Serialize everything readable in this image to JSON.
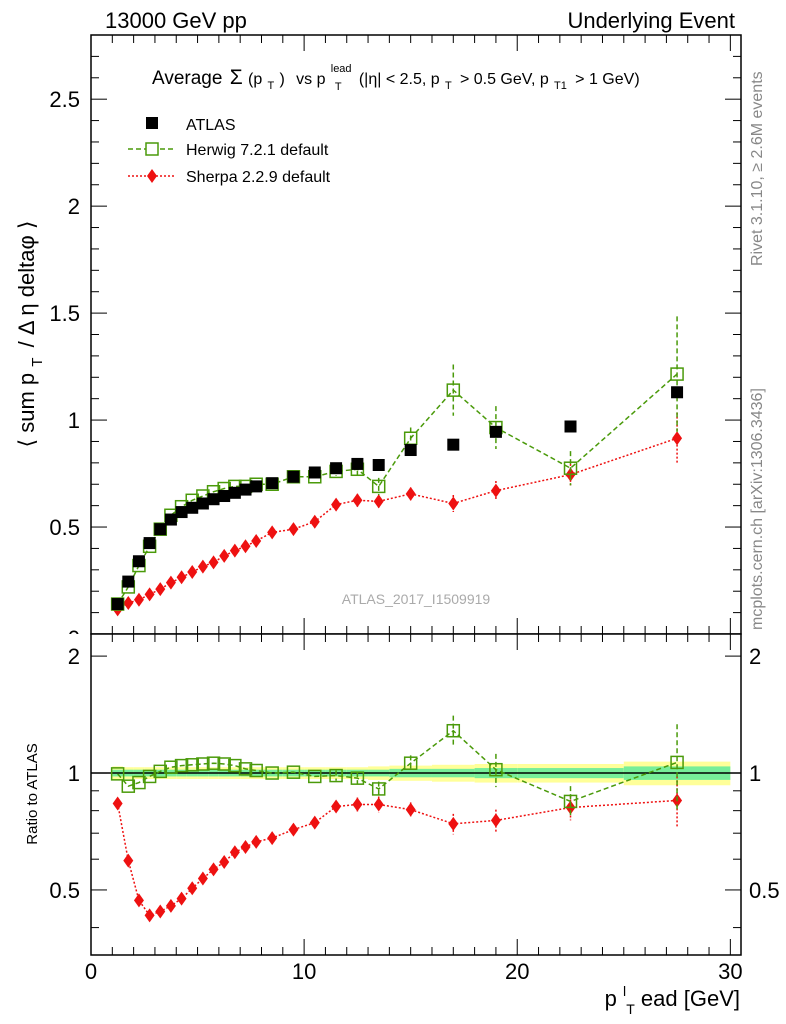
{
  "header": {
    "left": "13000 GeV pp",
    "right": "Underlying Event"
  },
  "side": {
    "rivet": "Rivet 3.1.10, ≥ 2.6M events",
    "mcplots": "mcplots.cern.ch [arXiv:1306.3436]"
  },
  "watermark": "ATLAS_2017_I1509919",
  "colors": {
    "herwig": "#4a9a0a",
    "sherpa": "#ee1111",
    "band_inner": "#77ee99",
    "band_outer": "#ffff99"
  },
  "chart_data": [
    {
      "type": "scatter",
      "panel": "main",
      "title": {
        "average": "Average",
        "sigma": "Σ",
        "pt_open": "(p",
        "pt_sub": "T",
        "pt_close": ")",
        "vs": "vs p",
        "lead_sup": "lead",
        "lead_sub": "T",
        "cuts_a": "(|η| < 2.5, p",
        "cuts_a_sub": "T",
        "cuts_b": "> 0.5 GeV, p",
        "cuts_b_sub": "T1",
        "cuts_c": "> 1 GeV)"
      },
      "ylabel": {
        "a": "⟨ sum p",
        "sub": "T",
        "b": "/ Δ η deltaφ ⟩"
      },
      "xlim": [
        0,
        30.5
      ],
      "ylim": [
        0,
        2.8
      ],
      "yticks": [
        "0.5",
        "1",
        "1.5",
        "2",
        "2.5"
      ],
      "ytick_values": [
        0.5,
        1,
        1.5,
        2,
        2.5
      ],
      "legend_position": "top-left",
      "series": [
        {
          "name": "ATLAS",
          "marker": "filled-square",
          "x": [
            1.25,
            1.75,
            2.25,
            2.75,
            3.25,
            3.75,
            4.25,
            4.75,
            5.25,
            5.75,
            6.25,
            6.75,
            7.25,
            7.75,
            8.5,
            9.5,
            10.5,
            11.5,
            12.5,
            13.5,
            15,
            17,
            19,
            22.5,
            27.5
          ],
          "y": [
            0.14,
            0.245,
            0.34,
            0.425,
            0.49,
            0.535,
            0.57,
            0.59,
            0.61,
            0.63,
            0.645,
            0.66,
            0.675,
            0.69,
            0.705,
            0.735,
            0.755,
            0.775,
            0.795,
            0.79,
            0.86,
            0.885,
            0.945,
            0.97,
            1.13
          ]
        },
        {
          "name": "Herwig 7.2.1 default",
          "marker": "open-square",
          "x": [
            1.25,
            1.75,
            2.25,
            2.75,
            3.25,
            3.75,
            4.25,
            4.75,
            5.25,
            5.75,
            6.25,
            6.75,
            7.25,
            7.75,
            8.5,
            9.5,
            10.5,
            11.5,
            12.5,
            13.5,
            15,
            17,
            19,
            22.5,
            27.5
          ],
          "y": [
            0.14,
            0.22,
            0.32,
            0.41,
            0.49,
            0.555,
            0.595,
            0.625,
            0.645,
            0.665,
            0.68,
            0.69,
            0.69,
            0.7,
            0.7,
            0.735,
            0.735,
            0.76,
            0.77,
            0.69,
            0.915,
            1.14,
            0.965,
            0.775,
            1.215
          ],
          "err": [
            0,
            0,
            0,
            0,
            0,
            0,
            0,
            0,
            0,
            0,
            0,
            0,
            0,
            0,
            0,
            0,
            0,
            0.02,
            0.03,
            0.04,
            0.05,
            0.12,
            0.1,
            0.08,
            0.27
          ]
        },
        {
          "name": "Sherpa 2.2.9 default",
          "marker": "filled-diamond",
          "x": [
            1.25,
            1.75,
            2.25,
            2.75,
            3.25,
            3.75,
            4.25,
            4.75,
            5.25,
            5.75,
            6.25,
            6.75,
            7.25,
            7.75,
            8.5,
            9.5,
            10.5,
            11.5,
            12.5,
            13.5,
            15,
            17,
            19,
            22.5,
            27.5
          ],
          "y": [
            0.115,
            0.145,
            0.16,
            0.185,
            0.21,
            0.24,
            0.265,
            0.29,
            0.315,
            0.335,
            0.365,
            0.39,
            0.41,
            0.435,
            0.475,
            0.49,
            0.525,
            0.605,
            0.625,
            0.62,
            0.655,
            0.61,
            0.67,
            0.745,
            0.915
          ],
          "err": [
            0,
            0,
            0,
            0,
            0,
            0,
            0,
            0,
            0,
            0,
            0,
            0,
            0,
            0,
            0,
            0,
            0.02,
            0.02,
            0.03,
            0.03,
            0.03,
            0.04,
            0.045,
            0.05,
            0.12
          ]
        }
      ]
    },
    {
      "type": "scatter",
      "panel": "ratio",
      "ylabel": "Ratio to ATLAS",
      "xlabel": {
        "main": "p",
        "sub": "T",
        "sup": "l",
        "rest": "ead [GeV]"
      },
      "xlim": [
        0,
        30.5
      ],
      "ylim": [
        0.34,
        2.28
      ],
      "xticks": [
        "0",
        "10",
        "20",
        "30"
      ],
      "xtick_values": [
        0,
        10,
        20,
        30
      ],
      "yticks": [
        "0.5",
        "1",
        "2"
      ],
      "ytick_values": [
        0.5,
        1,
        2
      ],
      "band": {
        "x_edges": [
          1,
          1.5,
          2,
          2.5,
          3,
          3.5,
          4,
          4.5,
          5,
          5.5,
          6,
          6.5,
          7,
          7.5,
          8,
          9,
          10,
          11,
          12,
          13,
          14,
          16,
          18,
          20,
          25,
          30
        ],
        "inner_half": [
          0.02,
          0.02,
          0.02,
          0.02,
          0.02,
          0.02,
          0.02,
          0.02,
          0.02,
          0.02,
          0.02,
          0.02,
          0.02,
          0.02,
          0.02,
          0.02,
          0.02,
          0.02,
          0.02,
          0.02,
          0.025,
          0.025,
          0.03,
          0.03,
          0.04
        ],
        "outer_half": [
          0.04,
          0.035,
          0.035,
          0.035,
          0.035,
          0.035,
          0.035,
          0.035,
          0.035,
          0.035,
          0.035,
          0.035,
          0.035,
          0.035,
          0.035,
          0.035,
          0.035,
          0.035,
          0.035,
          0.04,
          0.045,
          0.05,
          0.055,
          0.055,
          0.07
        ]
      },
      "series": [
        {
          "name": "Herwig 7.2.1 default",
          "x": [
            1.25,
            1.75,
            2.25,
            2.75,
            3.25,
            3.75,
            4.25,
            4.75,
            5.25,
            5.75,
            6.25,
            6.75,
            7.25,
            7.75,
            8.5,
            9.5,
            10.5,
            11.5,
            12.5,
            13.5,
            15,
            17,
            19,
            22.5,
            27.5
          ],
          "y": [
            0.995,
            0.925,
            0.945,
            0.98,
            1.01,
            1.035,
            1.045,
            1.05,
            1.055,
            1.06,
            1.055,
            1.045,
            1.025,
            1.015,
            1.0,
            1.005,
            0.98,
            0.985,
            0.97,
            0.91,
            1.06,
            1.285,
            1.02,
            0.845,
            1.065
          ],
          "err": [
            0,
            0,
            0,
            0,
            0,
            0,
            0,
            0,
            0,
            0,
            0,
            0,
            0,
            0,
            0,
            0,
            0,
            0.03,
            0.035,
            0.04,
            0.05,
            0.12,
            0.1,
            0.08,
            0.27
          ]
        },
        {
          "name": "Sherpa 2.2.9 default",
          "x": [
            1.25,
            1.75,
            2.25,
            2.75,
            3.25,
            3.75,
            4.25,
            4.75,
            5.25,
            5.75,
            6.25,
            6.75,
            7.25,
            7.75,
            8.5,
            9.5,
            10.5,
            11.5,
            12.5,
            13.5,
            15,
            17,
            19,
            22.5,
            27.5
          ],
          "y": [
            0.835,
            0.595,
            0.47,
            0.43,
            0.44,
            0.455,
            0.475,
            0.505,
            0.535,
            0.565,
            0.59,
            0.625,
            0.645,
            0.665,
            0.68,
            0.715,
            0.745,
            0.82,
            0.83,
            0.83,
            0.805,
            0.74,
            0.755,
            0.815,
            0.85
          ],
          "err": [
            0,
            0,
            0,
            0,
            0,
            0,
            0,
            0,
            0,
            0,
            0,
            0,
            0,
            0,
            0,
            0,
            0.02,
            0.025,
            0.035,
            0.04,
            0.035,
            0.045,
            0.05,
            0.06,
            0.13
          ]
        }
      ]
    }
  ]
}
